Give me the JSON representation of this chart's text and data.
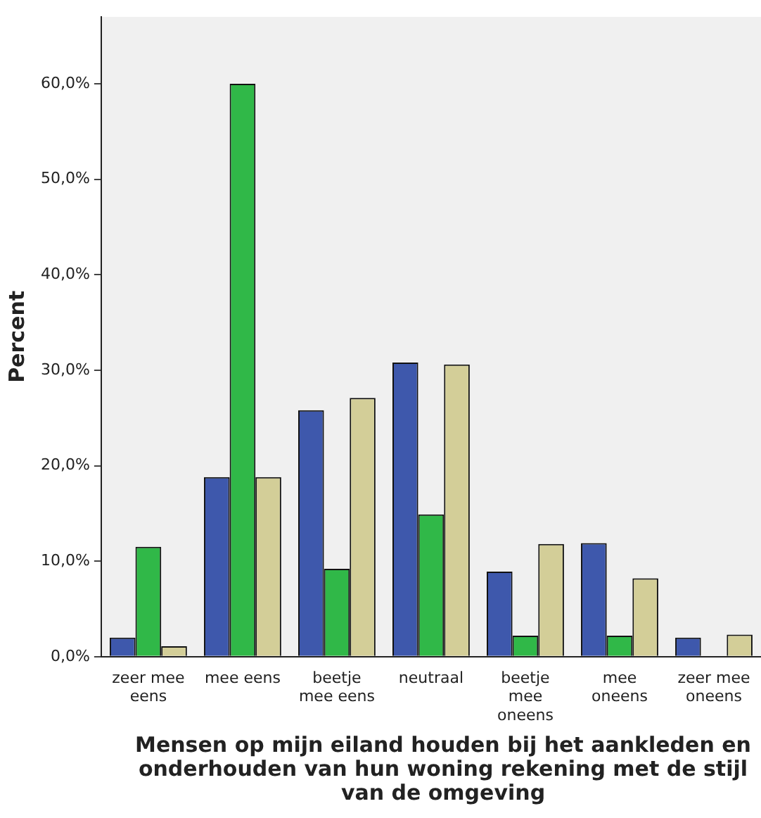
{
  "chart_data": {
    "type": "bar",
    "ylabel": "Percent",
    "xlabel": "Mensen op mijn eiland houden bij het aankleden en onderhouden van hun woning rekening met de stijl van de omgeving",
    "categories": [
      "zeer mee eens",
      "mee eens",
      "beetje mee eens",
      "neutraal",
      "beetje mee oneens",
      "mee oneens",
      "zeer mee oneens"
    ],
    "series": [
      {
        "color": "#3e58ac",
        "values": [
          2.0,
          18.8,
          25.8,
          30.8,
          8.9,
          11.9,
          2.0
        ]
      },
      {
        "color": "#30b848",
        "values": [
          11.5,
          60.0,
          9.2,
          14.9,
          2.2,
          2.2,
          0
        ]
      },
      {
        "color": "#d3ce98",
        "values": [
          1.1,
          18.8,
          27.1,
          30.6,
          11.8,
          8.2,
          2.3
        ]
      }
    ],
    "ylim": [
      0,
      67
    ],
    "yticks": [
      {
        "value": 0,
        "label": "0,0%"
      },
      {
        "value": 10,
        "label": "10,0%"
      },
      {
        "value": 20,
        "label": "20,0%"
      },
      {
        "value": 30,
        "label": "30,0%"
      },
      {
        "value": 40,
        "label": "40,0%"
      },
      {
        "value": 50,
        "label": "50,0%"
      },
      {
        "value": 60,
        "label": "60,0%"
      }
    ],
    "grid": false,
    "legend": false
  }
}
